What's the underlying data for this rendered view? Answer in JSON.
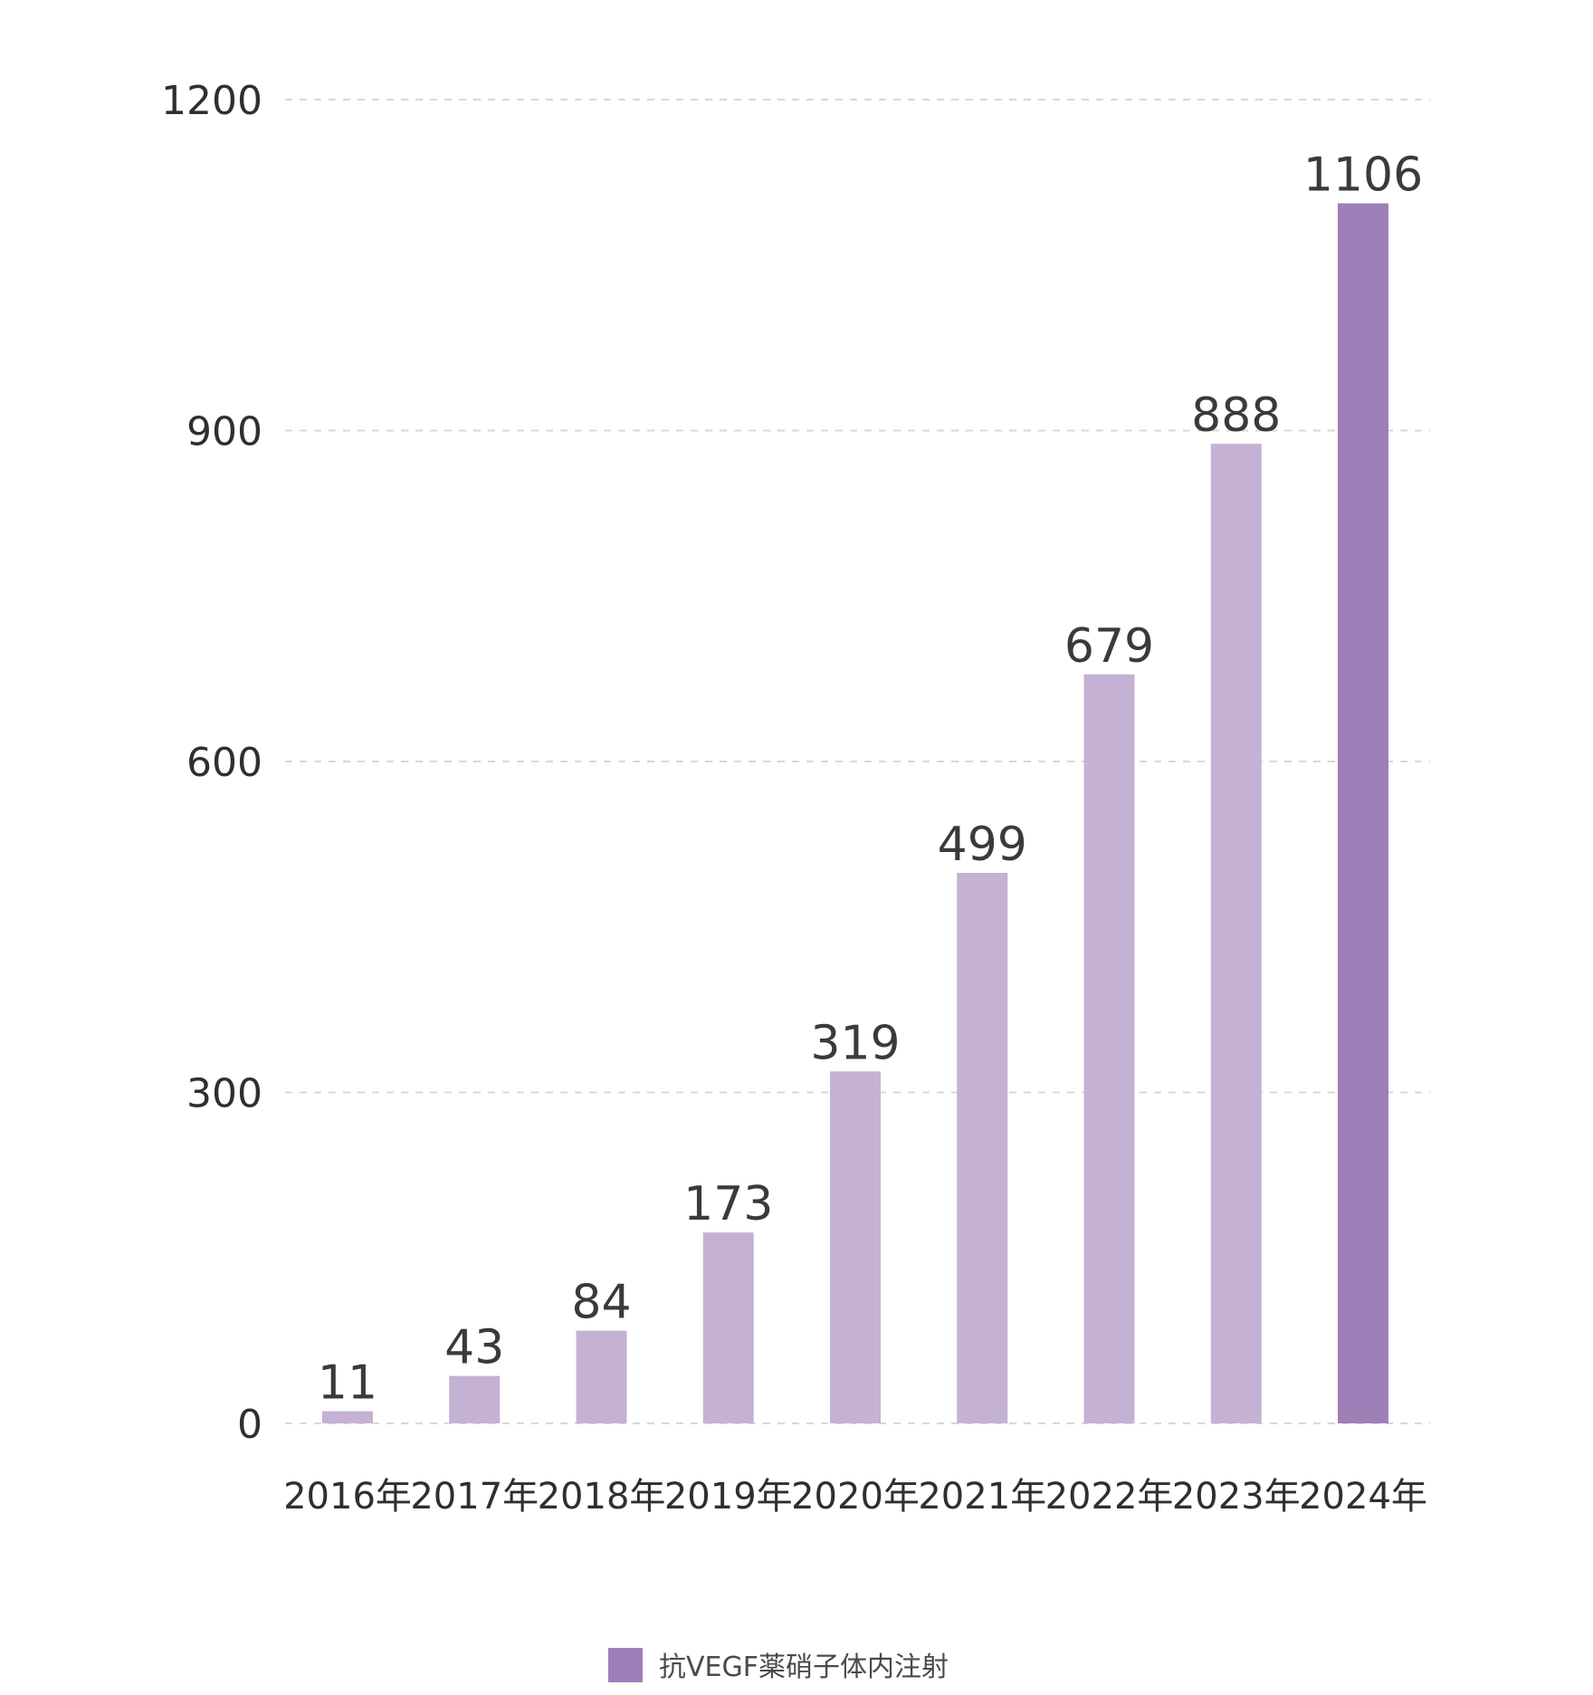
{
  "chart_data": {
    "type": "bar",
    "categories": [
      "2016年",
      "2017年",
      "2018年",
      "2019年",
      "2020年",
      "2021年",
      "2022年",
      "2023年",
      "2024年"
    ],
    "series": [
      {
        "name": "抗VEGF薬硝子体内注射",
        "values": [
          11,
          43,
          84,
          173,
          319,
          499,
          679,
          888,
          1106
        ]
      }
    ],
    "data_labels": [
      "11",
      "43",
      "84",
      "173",
      "319",
      "499",
      "679",
      "888",
      "1106"
    ],
    "y_ticks": [
      "0",
      "300",
      "600",
      "900",
      "1200"
    ],
    "ylim": [
      0,
      1200
    ],
    "grid": true,
    "legend_position": "bottom",
    "colors": {
      "bar": "#c4b1d4",
      "highlight_bar": "#9e7fb8",
      "legend_swatch": "#9e7fb8"
    },
    "highlight_index": 8
  }
}
